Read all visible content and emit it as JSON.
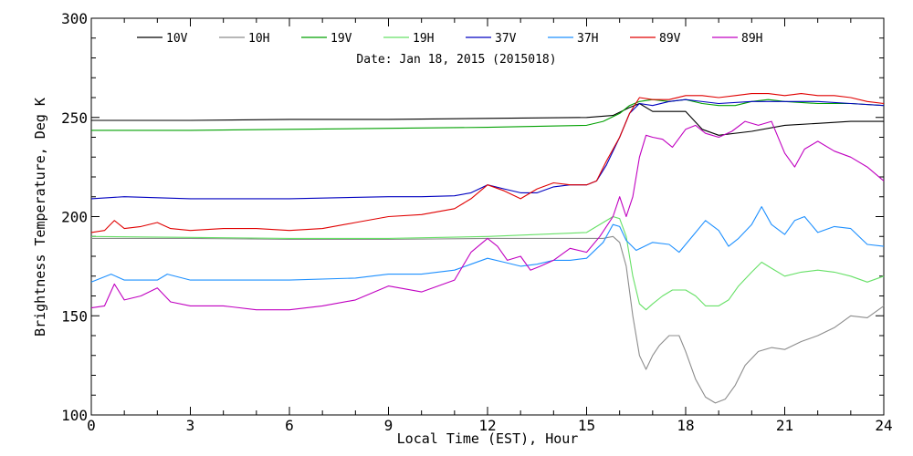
{
  "chart_data": {
    "type": "line",
    "subtitle": "Date: Jan 18, 2015 (2015018)",
    "xlabel": "Local Time (EST), Hour",
    "ylabel": "Brightness Temperature, Deg K",
    "xlim": [
      0,
      24
    ],
    "ylim": [
      100,
      300
    ],
    "xticks": [
      0,
      3,
      6,
      9,
      12,
      15,
      18,
      21,
      24
    ],
    "yticks": [
      100,
      150,
      200,
      250,
      300
    ],
    "grid": false,
    "legend": "top",
    "series": [
      {
        "name": "10V",
        "color": "#000000",
        "x": [
          0,
          3,
          6,
          9,
          12,
          15,
          15.8,
          16.3,
          16.6,
          17,
          18,
          18.5,
          19,
          20,
          21,
          22,
          23,
          24
        ],
        "y": [
          248.5,
          248.5,
          249,
          249,
          249.5,
          250,
          251,
          255,
          257,
          253,
          253,
          244,
          241,
          243,
          246,
          247,
          248,
          248
        ]
      },
      {
        "name": "10H",
        "color": "#8c8c8c",
        "x": [
          0,
          3,
          6,
          9,
          12,
          15,
          15.5,
          15.8,
          16,
          16.2,
          16.4,
          16.6,
          16.8,
          17,
          17.2,
          17.5,
          17.8,
          18,
          18.3,
          18.6,
          18.9,
          19.2,
          19.5,
          19.8,
          20.2,
          20.6,
          21,
          21.5,
          22,
          22.5,
          23,
          23.5,
          24
        ],
        "y": [
          189,
          189,
          188.5,
          188.5,
          189,
          189,
          189,
          190,
          187,
          175,
          150,
          130,
          123,
          130,
          135,
          140,
          140,
          132,
          118,
          109,
          106,
          108,
          115,
          125,
          132,
          134,
          133,
          137,
          140,
          144,
          150,
          149,
          155
        ]
      },
      {
        "name": "19V",
        "color": "#00a000",
        "x": [
          0,
          3,
          6,
          9,
          12,
          15,
          15.5,
          16,
          16.3,
          16.6,
          17,
          17.5,
          18,
          18.5,
          19,
          19.5,
          20,
          20.5,
          21,
          22,
          23,
          24
        ],
        "y": [
          243.5,
          243.5,
          244,
          244.5,
          245,
          246,
          248,
          252,
          256,
          258,
          259,
          258,
          259,
          257,
          256,
          256,
          258,
          259,
          258,
          257,
          257,
          256
        ]
      },
      {
        "name": "19H",
        "color": "#66e066",
        "x": [
          0,
          3,
          6,
          9,
          12,
          15,
          15.5,
          15.8,
          16,
          16.2,
          16.4,
          16.6,
          16.8,
          17,
          17.3,
          17.6,
          18,
          18.3,
          18.6,
          19,
          19.3,
          19.6,
          20,
          20.3,
          20.6,
          21,
          21.5,
          22,
          22.5,
          23,
          23.5,
          24
        ],
        "y": [
          190,
          189.5,
          189,
          189,
          190,
          192,
          197,
          200,
          199,
          190,
          170,
          156,
          153,
          156,
          160,
          163,
          163,
          160,
          155,
          155,
          158,
          165,
          172,
          177,
          174,
          170,
          172,
          173,
          172,
          170,
          167,
          170
        ]
      },
      {
        "name": "37V",
        "color": "#0000c0",
        "x": [
          0,
          1,
          2,
          3,
          6,
          9,
          10,
          11,
          11.5,
          12,
          12.5,
          13,
          13.5,
          14,
          14.5,
          15,
          15.3,
          15.6,
          16,
          16.3,
          16.6,
          17,
          17.5,
          18,
          19,
          20,
          21,
          22,
          23,
          24
        ],
        "y": [
          209,
          210,
          209.5,
          209,
          209,
          210,
          210,
          210.5,
          212,
          216,
          214,
          212,
          212,
          215,
          216,
          216,
          218,
          226,
          240,
          252,
          257,
          256,
          258,
          259,
          257,
          258,
          258,
          258,
          257,
          256
        ]
      },
      {
        "name": "37H",
        "color": "#1e90ff",
        "x": [
          0,
          0.6,
          1,
          2,
          2.3,
          3,
          6,
          8,
          9,
          10,
          11,
          11.5,
          12,
          12.5,
          13,
          13.5,
          14,
          14.5,
          15,
          15.5,
          15.8,
          16,
          16.2,
          16.5,
          17,
          17.5,
          17.8,
          18,
          18.3,
          18.6,
          19,
          19.3,
          19.6,
          20,
          20.3,
          20.6,
          21,
          21.3,
          21.6,
          22,
          22.5,
          23,
          23.5,
          24
        ],
        "y": [
          167,
          171,
          168,
          168,
          171,
          168,
          168,
          169,
          171,
          171,
          173,
          176,
          179,
          177,
          175,
          176,
          178,
          178,
          179,
          187,
          196,
          195,
          188,
          183,
          187,
          186,
          182,
          186,
          192,
          198,
          193,
          185,
          189,
          196,
          205,
          196,
          191,
          198,
          200,
          192,
          195,
          194,
          186,
          185
        ]
      },
      {
        "name": "89V",
        "color": "#e00000",
        "x": [
          0,
          0.4,
          0.7,
          1,
          1.5,
          2,
          2.4,
          3,
          4,
          5,
          6,
          7,
          8,
          9,
          10,
          11,
          11.5,
          12,
          12.5,
          13,
          13.5,
          14,
          14.5,
          15,
          15.3,
          15.6,
          16,
          16.3,
          16.6,
          17,
          17.5,
          18,
          18.5,
          19,
          19.5,
          20,
          20.5,
          21,
          21.5,
          22,
          22.5,
          23,
          23.5,
          24
        ],
        "y": [
          192,
          193,
          198,
          194,
          195,
          197,
          194,
          193,
          194,
          194,
          193,
          194,
          197,
          200,
          201,
          204,
          209,
          216,
          213,
          209,
          214,
          217,
          216,
          216,
          218,
          228,
          240,
          252,
          260,
          259,
          259,
          261,
          261,
          260,
          261,
          262,
          262,
          261,
          262,
          261,
          261,
          260,
          258,
          257
        ]
      },
      {
        "name": "89H",
        "color": "#c000c0",
        "x": [
          0,
          0.4,
          0.7,
          1,
          1.5,
          2,
          2.4,
          3,
          4,
          5,
          6,
          7,
          8,
          9,
          10,
          11,
          11.5,
          12,
          12.3,
          12.6,
          13,
          13.3,
          13.6,
          14,
          14.5,
          15,
          15.4,
          15.8,
          16,
          16.2,
          16.4,
          16.6,
          16.8,
          17,
          17.3,
          17.6,
          18,
          18.3,
          18.6,
          19,
          19.4,
          19.8,
          20.2,
          20.6,
          21,
          21.3,
          21.6,
          22,
          22.5,
          23,
          23.5,
          24
        ],
        "y": [
          154,
          155,
          166,
          158,
          160,
          164,
          157,
          155,
          155,
          153,
          153,
          155,
          158,
          165,
          162,
          168,
          182,
          189,
          185,
          178,
          180,
          173,
          175,
          178,
          184,
          182,
          190,
          200,
          210,
          200,
          210,
          230,
          241,
          240,
          239,
          235,
          244,
          246,
          242,
          240,
          243,
          248,
          246,
          248,
          232,
          225,
          234,
          238,
          233,
          230,
          225,
          218
        ]
      }
    ]
  }
}
